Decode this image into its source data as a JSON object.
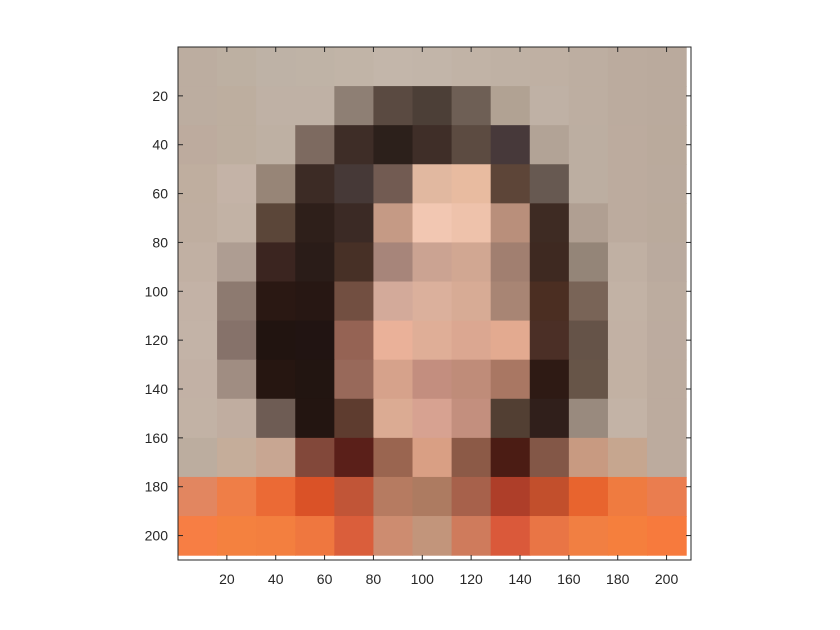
{
  "chart_data": {
    "type": "heatmap",
    "title": "",
    "xlabel": "",
    "ylabel": "",
    "xlim": [
      0,
      210
    ],
    "ylim": [
      210,
      0
    ],
    "cell_size": 16,
    "x_ticks": [
      20,
      40,
      60,
      80,
      100,
      120,
      140,
      160,
      180,
      200
    ],
    "y_ticks": [
      20,
      40,
      60,
      80,
      100,
      120,
      140,
      160,
      180,
      200
    ],
    "pixel_colors": [
      [
        "#bcada0",
        "#bdb0a2",
        "#beb2a6",
        "#bfb3a6",
        "#c1b4a7",
        "#c3b6aa",
        "#c2b5a9",
        "#c1b3a6",
        "#bfb1a4",
        "#bfb0a3",
        "#bdaea1",
        "#bbab9e",
        "#baaa9d"
      ],
      [
        "#bcada0",
        "#bdae9f",
        "#bfb1a5",
        "#bfb1a5",
        "#8e7f74",
        "#5a4a41",
        "#4c3f37",
        "#6e5f55",
        "#b1a293",
        "#bfb1a5",
        "#bdaea1",
        "#bbab9e",
        "#baaa9d"
      ],
      [
        "#bdab9e",
        "#bdae9f",
        "#beb0a3",
        "#7d6a60",
        "#3e2d27",
        "#2c201b",
        "#3f2e28",
        "#5c4b41",
        "#47393a",
        "#b2a396",
        "#bcaea1",
        "#bcab9e",
        "#baaa9c"
      ],
      [
        "#bfae9f",
        "#c4b3a7",
        "#978577",
        "#3c2b25",
        "#463937",
        "#725b52",
        "#e1b8a0",
        "#e8bba0",
        "#5d4538",
        "#675951",
        "#bcaea1",
        "#bcab9e",
        "#baaa9d"
      ],
      [
        "#bfaea0",
        "#c2b2a5",
        "#5b4639",
        "#2e1f1a",
        "#3b2a25",
        "#c59a85",
        "#f2c7b2",
        "#eec2ab",
        "#b98f7b",
        "#3e2b23",
        "#b09f92",
        "#bcab9e",
        "#baaa9c"
      ],
      [
        "#c1b0a3",
        "#ae9d92",
        "#3b2520",
        "#2a1c18",
        "#473026",
        "#a7857a",
        "#cba392",
        "#d1a792",
        "#a17f70",
        "#3e2921",
        "#948578",
        "#c0b0a3",
        "#baaa9e"
      ],
      [
        "#c3b2a6",
        "#8d7a70",
        "#2a1813",
        "#271713",
        "#724f41",
        "#d3aa9a",
        "#dbb09c",
        "#d7ab95",
        "#a88574",
        "#4b2e22",
        "#796457",
        "#c2b2a5",
        "#bcac9f"
      ],
      [
        "#c3b3a7",
        "#86726a",
        "#211410",
        "#211412",
        "#956354",
        "#eab199",
        "#dfae97",
        "#dba791",
        "#e3aa90",
        "#4b2f26",
        "#655348",
        "#c2b1a4",
        "#bcab9f"
      ],
      [
        "#c2b1a5",
        "#a08d82",
        "#261611",
        "#221511",
        "#98695a",
        "#d6a28b",
        "#c38e7f",
        "#bf8c79",
        "#a97763",
        "#2e1a14",
        "#675548",
        "#c2b1a3",
        "#bcab9e"
      ],
      [
        "#c2b2a5",
        "#c0ada0",
        "#6e5c54",
        "#231511",
        "#5e3c2f",
        "#dbab93",
        "#d7a291",
        "#c38f7e",
        "#523f33",
        "#301f1b",
        "#998a7e",
        "#c3b3a6",
        "#bcab9e"
      ],
      [
        "#bcad9f",
        "#c5ad9a",
        "#c8a692",
        "#82483a",
        "#5a1f19",
        "#9a6550",
        "#d99f84",
        "#8c5a47",
        "#4b1c14",
        "#835747",
        "#c89a81",
        "#c6a68f",
        "#bcab9e"
      ],
      [
        "#e28660",
        "#ef7e47",
        "#eb6a35",
        "#da5227",
        "#c15537",
        "#b67b61",
        "#ad7b61",
        "#a7614b",
        "#ae3e29",
        "#c24f2c",
        "#e8642e",
        "#ef7b40",
        "#ea7d4f"
      ],
      [
        "#f77e44",
        "#f4813f",
        "#f37f3f",
        "#ef773f",
        "#da5e3b",
        "#cd8c70",
        "#c2957b",
        "#cf7b5c",
        "#da593a",
        "#e97545",
        "#f17f42",
        "#f57f3d",
        "#f77a3d"
      ]
    ]
  }
}
